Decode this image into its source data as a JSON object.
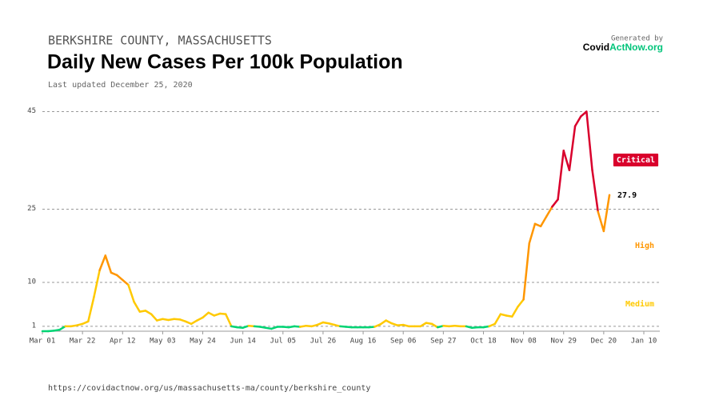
{
  "chart_data": {
    "type": "line",
    "subtitle": "BERKSHIRE COUNTY, MASSACHUSETTS",
    "title": "Daily New Cases Per 100k Population",
    "updated": "Last updated December 25, 2020",
    "generated_by": "Generated by",
    "brand": {
      "dark": "Covid",
      "accent": "ActNow.org"
    },
    "source": "https://covidactnow.org/us/massachusetts-ma/county/berkshire_county",
    "categories": [
      "Mar 01",
      null,
      null,
      null,
      null,
      null,
      null,
      "Mar 22",
      null,
      null,
      null,
      null,
      null,
      null,
      "Apr 12",
      null,
      null,
      null,
      null,
      null,
      null,
      "May 03",
      null,
      null,
      null,
      null,
      null,
      null,
      "May 24",
      null,
      null,
      null,
      null,
      null,
      null,
      "Jun 14",
      null,
      null,
      null,
      null,
      null,
      null,
      "Jul 05",
      null,
      null,
      null,
      null,
      null,
      null,
      "Jul 26",
      null,
      null,
      null,
      null,
      null,
      null,
      "Aug 16",
      null,
      null,
      null,
      null,
      null,
      null,
      "Sep 06",
      null,
      null,
      null,
      null,
      null,
      null,
      "Sep 27",
      null,
      null,
      null,
      null,
      null,
      null,
      "Oct 18",
      null,
      null,
      null,
      null,
      null,
      null,
      "Nov 08",
      null,
      null,
      null,
      null,
      null,
      null,
      "Nov 29",
      null,
      null,
      null,
      null,
      null,
      null,
      "Dec 20",
      null,
      null,
      null,
      null,
      null,
      null,
      "Jan 10"
    ],
    "series": [
      {
        "values": [
          0,
          0,
          0.1,
          0.3,
          1.0,
          1.0,
          1.2,
          1.5,
          2.0,
          7,
          12.5,
          15.5,
          12,
          11.5,
          10.5,
          9.5,
          6,
          4,
          4.2,
          3.5,
          2.2,
          2.5,
          2.3,
          2.5,
          2.4,
          2.0,
          1.5,
          2.2,
          2.8,
          3.8,
          3.2,
          3.6,
          3.5,
          1.0,
          0.8,
          0.7,
          1.1,
          1.0,
          0.9,
          0.7,
          0.5,
          0.9,
          0.9,
          0.8,
          1.0,
          0.9,
          1.1,
          1.0,
          1.3,
          1.8,
          1.6,
          1.3,
          1.0,
          0.9,
          0.8,
          0.8,
          0.8,
          0.8,
          0.9,
          1.4,
          2.2,
          1.6,
          1.2,
          1.3,
          1.0,
          1.0,
          1.0,
          1.7,
          1.5,
          0.8,
          1.1,
          1.0,
          1.1,
          1.0,
          1.0,
          0.7,
          0.8,
          0.8,
          1.0,
          1.5,
          3.5,
          3.2,
          3.0,
          5.0,
          6.5,
          18,
          22,
          21.5,
          23.5,
          25.5,
          27,
          37,
          33,
          42,
          44,
          45,
          33,
          24.5,
          20.5,
          27.9,
          null,
          null,
          null,
          null,
          null,
          null
        ]
      }
    ],
    "levels": [
      {
        "min": 25,
        "color": "#d9002c",
        "label": "Critical"
      },
      {
        "min": 10,
        "color": "#ff9600",
        "label": "High"
      },
      {
        "min": 1,
        "color": "#ffc900",
        "label": "Medium"
      },
      {
        "min": 0,
        "color": "#00d474"
      }
    ],
    "ylim": [
      0,
      45
    ],
    "yticks": [
      1,
      10,
      25,
      45
    ],
    "grid": true
  }
}
